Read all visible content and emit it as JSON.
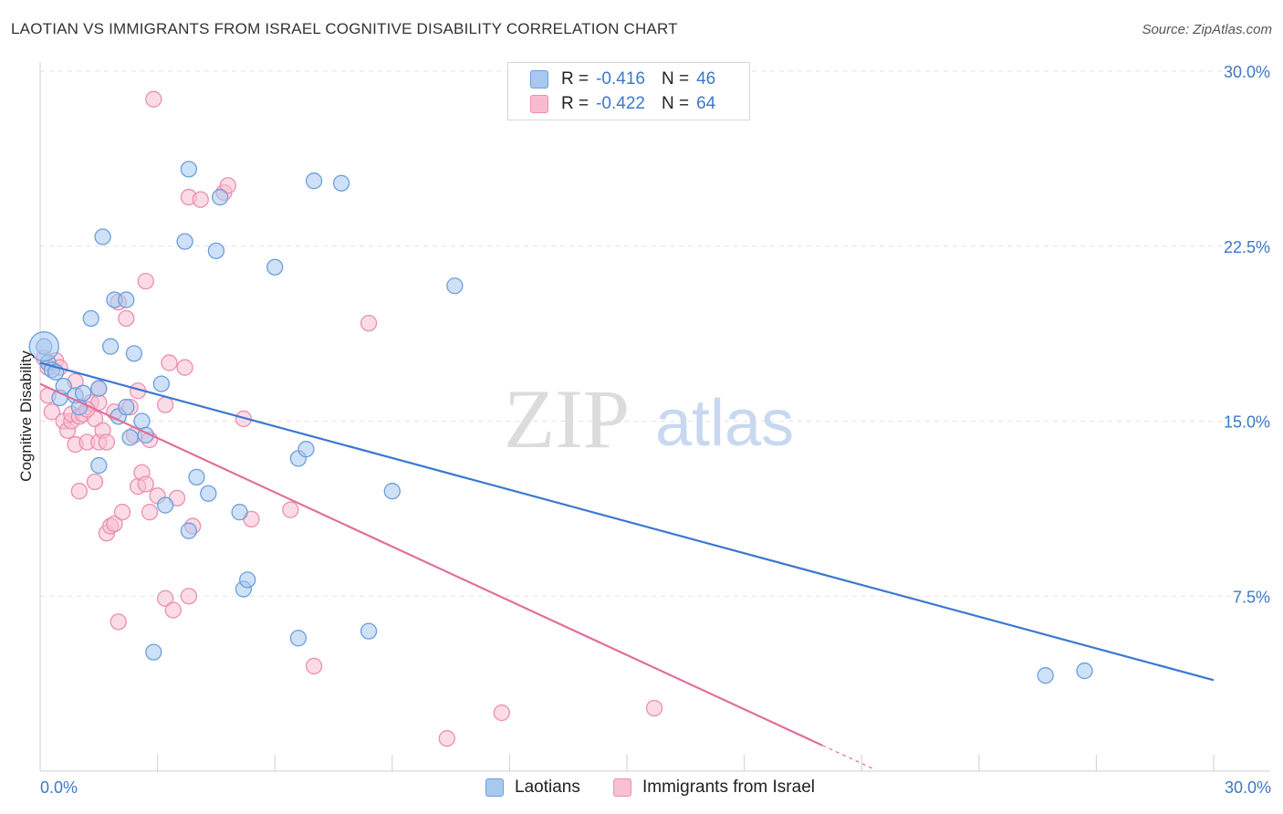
{
  "header": {
    "title": "LAOTIAN VS IMMIGRANTS FROM ISRAEL COGNITIVE DISABILITY CORRELATION CHART",
    "source": "Source: ZipAtlas.com"
  },
  "watermark": {
    "zip": "ZIP",
    "atlas": "atlas"
  },
  "legend": {
    "rows": [
      {
        "r_label": "R =",
        "r_value": "-0.416",
        "n_label": "N =",
        "n_value": "46",
        "color": "#a8c8f0"
      },
      {
        "r_label": "R =",
        "r_value": "-0.422",
        "n_label": "N =",
        "n_value": "64",
        "color": "#f8bcd0"
      }
    ]
  },
  "bottom_legend": {
    "laotians": "Laotians",
    "israel": "Immigrants from Israel"
  },
  "colors": {
    "laotian_fill": "#a8c8f0",
    "laotian_stroke": "#6a9fdc",
    "laotian_line": "#3a78d0",
    "israel_fill": "#f8c0d2",
    "israel_stroke": "#ec8eb0",
    "israel_line": "#e0709a",
    "tick_text": "#3c78c8"
  },
  "chart_data": {
    "type": "scatter",
    "title": "LAOTIAN VS IMMIGRANTS FROM ISRAEL COGNITIVE DISABILITY CORRELATION CHART",
    "xlabel": "",
    "ylabel": "Cognitive Disability",
    "xlim": [
      0,
      30
    ],
    "ylim": [
      0,
      30
    ],
    "x_tick_labels": [
      "0.0%",
      "30.0%"
    ],
    "y_ticks": [
      7.5,
      15.0,
      22.5,
      30.0
    ],
    "y_tick_labels": [
      "7.5%",
      "15.0%",
      "22.5%",
      "30.0%"
    ],
    "grid": true,
    "series": [
      {
        "name": "Laotians",
        "r": -0.416,
        "n": 46,
        "trend": {
          "x": [
            0,
            30
          ],
          "y": [
            17.5,
            3.9
          ]
        },
        "points": [
          [
            0.1,
            18.2
          ],
          [
            0.2,
            17.5
          ],
          [
            0.3,
            17.2
          ],
          [
            0.5,
            16.0
          ],
          [
            0.6,
            16.5
          ],
          [
            0.9,
            16.1
          ],
          [
            1.0,
            15.6
          ],
          [
            1.1,
            16.2
          ],
          [
            1.3,
            19.4
          ],
          [
            1.5,
            16.4
          ],
          [
            1.5,
            13.1
          ],
          [
            1.6,
            22.9
          ],
          [
            1.8,
            18.2
          ],
          [
            1.9,
            20.2
          ],
          [
            2.0,
            15.2
          ],
          [
            2.2,
            20.2
          ],
          [
            2.2,
            15.6
          ],
          [
            2.3,
            14.3
          ],
          [
            2.4,
            17.9
          ],
          [
            2.6,
            15.0
          ],
          [
            2.7,
            14.4
          ],
          [
            3.1,
            16.6
          ],
          [
            3.2,
            11.4
          ],
          [
            2.9,
            5.1
          ],
          [
            3.7,
            22.7
          ],
          [
            3.8,
            25.8
          ],
          [
            3.8,
            10.3
          ],
          [
            4.0,
            12.6
          ],
          [
            4.3,
            11.9
          ],
          [
            4.5,
            22.3
          ],
          [
            4.6,
            24.6
          ],
          [
            5.1,
            11.1
          ],
          [
            5.2,
            7.8
          ],
          [
            5.3,
            8.2
          ],
          [
            6.0,
            21.6
          ],
          [
            6.6,
            5.7
          ],
          [
            6.6,
            13.4
          ],
          [
            6.8,
            13.8
          ],
          [
            7.0,
            25.3
          ],
          [
            7.7,
            25.2
          ],
          [
            8.4,
            6.0
          ],
          [
            9.0,
            12.0
          ],
          [
            10.6,
            20.8
          ],
          [
            25.7,
            4.1
          ],
          [
            26.7,
            4.3
          ],
          [
            0.4,
            17.1
          ]
        ]
      },
      {
        "name": "Immigrants from Israel",
        "r": -0.422,
        "n": 64,
        "trend": {
          "x": [
            0,
            20
          ],
          "y": [
            16.6,
            1.1
          ]
        },
        "points": [
          [
            0.1,
            17.7
          ],
          [
            0.2,
            17.3
          ],
          [
            0.2,
            16.1
          ],
          [
            0.3,
            15.4
          ],
          [
            0.4,
            17.6
          ],
          [
            0.5,
            17.3
          ],
          [
            0.6,
            15.0
          ],
          [
            0.7,
            14.6
          ],
          [
            0.8,
            15.0
          ],
          [
            0.8,
            15.3
          ],
          [
            0.9,
            16.7
          ],
          [
            0.9,
            14.0
          ],
          [
            1.0,
            15.2
          ],
          [
            1.0,
            12.0
          ],
          [
            1.1,
            15.3
          ],
          [
            1.2,
            14.1
          ],
          [
            1.3,
            15.8
          ],
          [
            1.4,
            15.1
          ],
          [
            1.4,
            12.4
          ],
          [
            1.5,
            15.8
          ],
          [
            1.5,
            16.4
          ],
          [
            1.5,
            14.1
          ],
          [
            1.6,
            14.6
          ],
          [
            1.7,
            14.1
          ],
          [
            1.7,
            10.2
          ],
          [
            1.8,
            10.5
          ],
          [
            1.9,
            15.4
          ],
          [
            1.9,
            10.6
          ],
          [
            2.0,
            20.1
          ],
          [
            2.1,
            11.1
          ],
          [
            2.0,
            6.4
          ],
          [
            2.2,
            19.4
          ],
          [
            2.3,
            15.6
          ],
          [
            2.4,
            14.4
          ],
          [
            2.5,
            12.2
          ],
          [
            2.5,
            16.3
          ],
          [
            2.6,
            12.8
          ],
          [
            2.7,
            12.3
          ],
          [
            2.7,
            21.0
          ],
          [
            2.8,
            11.1
          ],
          [
            2.8,
            14.2
          ],
          [
            2.9,
            28.8
          ],
          [
            3.0,
            11.8
          ],
          [
            3.2,
            7.4
          ],
          [
            3.2,
            15.7
          ],
          [
            3.3,
            17.5
          ],
          [
            3.4,
            6.9
          ],
          [
            3.5,
            11.7
          ],
          [
            3.7,
            17.3
          ],
          [
            3.8,
            24.6
          ],
          [
            3.8,
            7.5
          ],
          [
            3.9,
            10.5
          ],
          [
            4.1,
            24.5
          ],
          [
            4.7,
            24.8
          ],
          [
            4.8,
            25.1
          ],
          [
            5.2,
            15.1
          ],
          [
            5.4,
            10.8
          ],
          [
            6.4,
            11.2
          ],
          [
            7.0,
            4.5
          ],
          [
            8.4,
            19.2
          ],
          [
            10.4,
            1.4
          ],
          [
            11.8,
            2.5
          ],
          [
            15.7,
            2.7
          ],
          [
            1.2,
            15.5
          ]
        ]
      }
    ]
  }
}
